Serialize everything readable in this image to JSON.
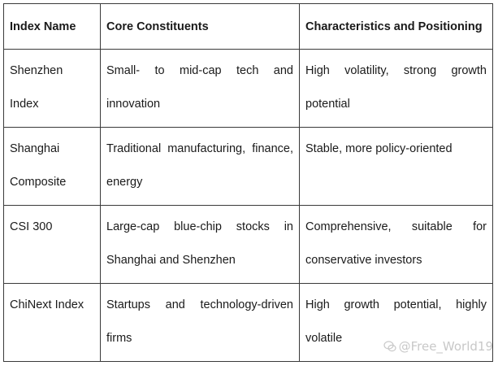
{
  "table": {
    "headers": [
      "Index Name",
      "Core Constituents",
      "Characteristics and Positioning"
    ],
    "rows": [
      [
        "Shenzhen Index",
        "Small- to mid-cap tech and innovation",
        "High volatility, strong growth potential"
      ],
      [
        "Shanghai Composite",
        "Traditional manufacturing, finance, energy",
        "Stable, more policy-oriented"
      ],
      [
        "CSI 300",
        "Large-cap blue-chip stocks in Shanghai and Shenzhen",
        "Comprehensive, suitable for conservative investors"
      ],
      [
        "ChiNext Index",
        "Startups and technology-driven firms",
        "High growth potential, highly volatile"
      ]
    ]
  },
  "watermark": {
    "text": "@Free_World19",
    "icon": "wechat-icon"
  }
}
